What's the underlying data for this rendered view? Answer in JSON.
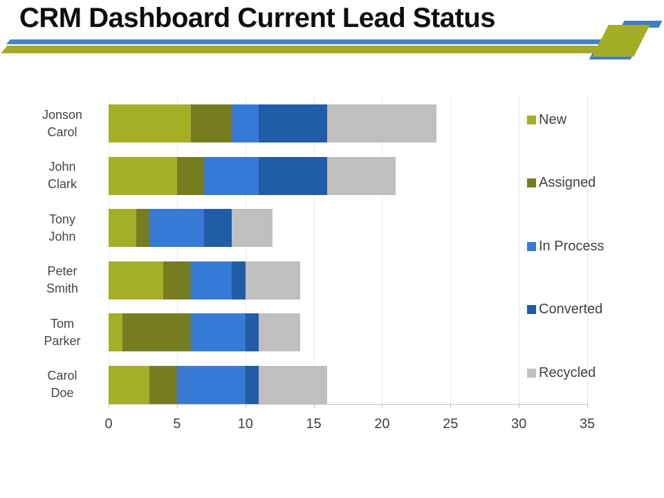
{
  "slide": {
    "title": "CRM Dashboard Current Lead Status"
  },
  "colors": {
    "stripe_blue": "#4583c4",
    "stripe_olive": "#a4aa24",
    "deco_green": "#a4ad26",
    "deco_blue": "#3e7dc4",
    "gridline": "#e8e8e8",
    "axis_line": "#bfbfbf",
    "axis_text": "#404040",
    "category_text": "#444444",
    "title_text": "#0d0d0d"
  },
  "chart_data": {
    "type": "bar",
    "orientation": "horizontal",
    "stacked": true,
    "title": "",
    "xlabel": "",
    "ylabel": "",
    "grid": true,
    "legend_position": "right",
    "xlim": [
      0,
      35
    ],
    "x_ticks": [
      0,
      5,
      10,
      15,
      20,
      25,
      30,
      35
    ],
    "categories": [
      "Jonson Carol",
      "John Clark",
      "Tony John",
      "Peter Smith",
      "Tom Parker",
      "Carol Doe"
    ],
    "category_lines": [
      [
        "Jonson",
        "Carol"
      ],
      [
        "John",
        "Clark"
      ],
      [
        "Tony",
        "John"
      ],
      [
        "Peter",
        "Smith"
      ],
      [
        "Tom",
        "Parker"
      ],
      [
        "Carol",
        "Doe"
      ]
    ],
    "series": [
      {
        "name": "New",
        "color": "#a4ae27",
        "values": [
          6,
          5,
          2,
          4,
          1,
          3
        ]
      },
      {
        "name": "Assigned",
        "color": "#767d20",
        "values": [
          3,
          2,
          1,
          2,
          5,
          2
        ]
      },
      {
        "name": "In Process",
        "color": "#367ad5",
        "values": [
          2,
          4,
          4,
          3,
          4,
          5
        ]
      },
      {
        "name": "Converted",
        "color": "#215ca6",
        "values": [
          5,
          5,
          2,
          1,
          1,
          1
        ]
      },
      {
        "name": "Recycled",
        "color": "#bfbfbf",
        "values": [
          8,
          5,
          3,
          4,
          3,
          5
        ]
      }
    ],
    "totals": [
      24,
      21,
      12,
      14,
      14,
      16
    ]
  }
}
